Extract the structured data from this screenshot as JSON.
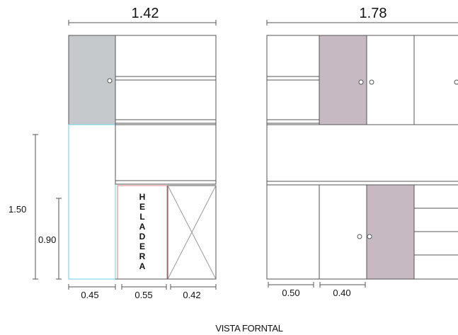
{
  "title": "VISTA FORNTAL",
  "colors": {
    "line": "#555555",
    "gray_door": "#c6c9cc",
    "mauve_door": "#c6b9c2",
    "cyan_outline": "#6ad3ea",
    "red_outline": "#d98080"
  },
  "left_unit": {
    "overall_width": "1.42",
    "total_height": "1.50",
    "lower_height": "0.90",
    "module_widths": [
      "0.45",
      "0.55",
      "0.42"
    ],
    "fridge_label": [
      "H",
      "E",
      "L",
      "A",
      "D",
      "E",
      "R",
      "A"
    ]
  },
  "right_unit": {
    "overall_width": "1.78",
    "module_widths": [
      "0.50",
      "0.40"
    ]
  }
}
